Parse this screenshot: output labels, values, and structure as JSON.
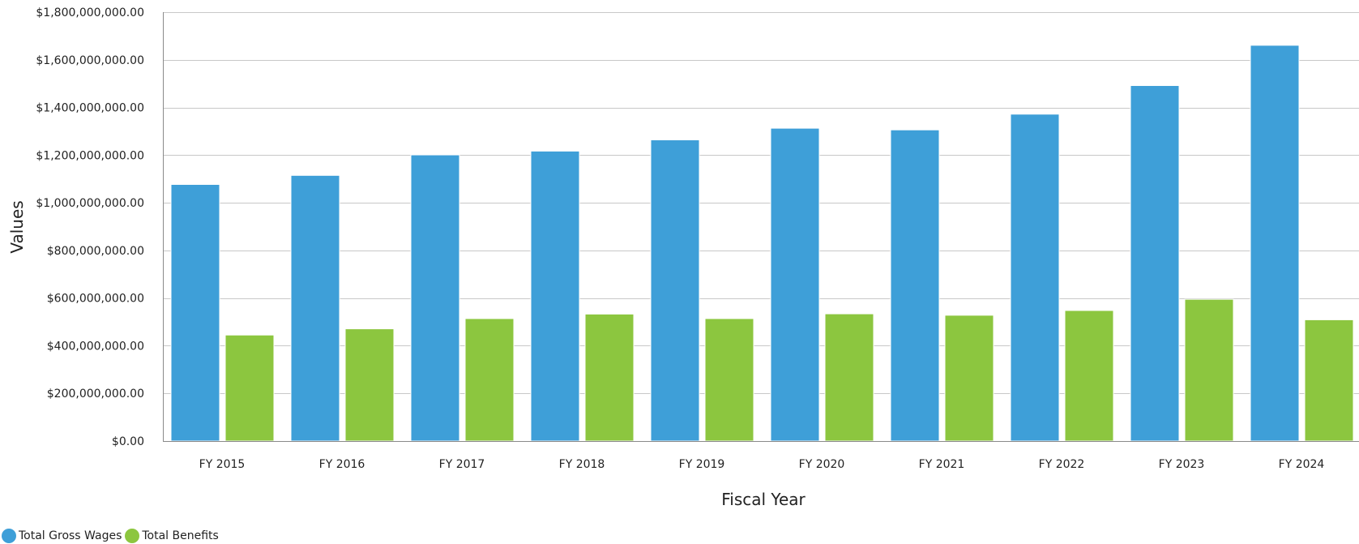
{
  "chart_data": {
    "type": "bar",
    "title": "",
    "xlabel": "Fiscal Year",
    "ylabel": "Values",
    "categories": [
      "FY 2015",
      "FY 2016",
      "FY 2017",
      "FY 2018",
      "FY 2019",
      "FY 2020",
      "FY 2021",
      "FY 2022",
      "FY 2023",
      "FY 2024"
    ],
    "series": [
      {
        "name": "Total Gross Wages",
        "color": "#3e9fd8",
        "values": [
          1077000000,
          1115000000,
          1201000000,
          1217000000,
          1264000000,
          1313000000,
          1306000000,
          1372000000,
          1492000000,
          1661000000
        ]
      },
      {
        "name": "Total Benefits",
        "color": "#8cc63f",
        "values": [
          445000000,
          471000000,
          514000000,
          533000000,
          514000000,
          534000000,
          528000000,
          548000000,
          595000000,
          509000000
        ]
      }
    ],
    "ylim": [
      0,
      1800000000
    ],
    "yticks": [
      0,
      200000000,
      400000000,
      600000000,
      800000000,
      1000000000,
      1200000000,
      1400000000,
      1600000000,
      1800000000
    ],
    "ytick_labels": [
      "$0.00",
      "$200,000,000.00",
      "$400,000,000.00",
      "$600,000,000.00",
      "$800,000,000.00",
      "$1,000,000,000.00",
      "$1,200,000,000.00",
      "$1,400,000,000.00",
      "$1,600,000,000.00",
      "$1,800,000,000.00"
    ],
    "grid": true,
    "legend": "bottom-left"
  }
}
